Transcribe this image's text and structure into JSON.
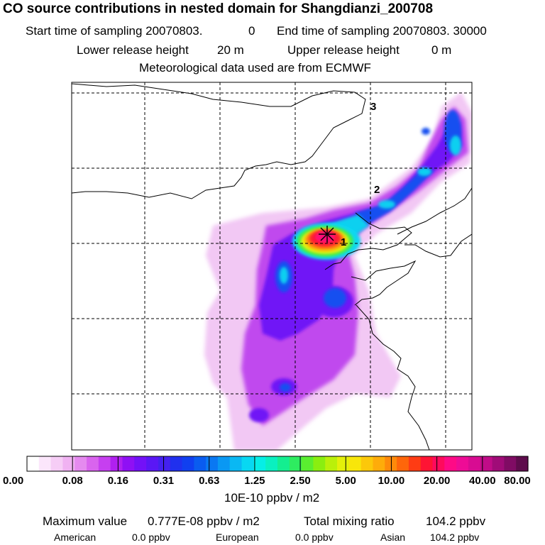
{
  "header": {
    "title": "CO  source contributions in nested domain for Shangdianzi_200708",
    "start_label": "Start time of sampling 20070803.",
    "start_value": "0",
    "end_label": "End time of sampling 20070803. 30000",
    "lower_label": "Lower release height",
    "lower_value": "20 m",
    "upper_label": "Upper release height",
    "upper_value": "0 m",
    "met_line": "Meteorological data used are from ECMWF"
  },
  "map": {
    "trajectory_labels": [
      "1",
      "2",
      "3"
    ],
    "receptor_marker": "star-marker"
  },
  "colorbar": {
    "ticks": [
      "0.00",
      "0.08",
      "0.16",
      "0.31",
      "0.63",
      "1.25",
      "2.50",
      "5.00",
      "10.00",
      "20.00",
      "40.00",
      "80.00"
    ],
    "units": "10E-10 ppbv / m2",
    "colors": [
      "#ffffff",
      "#fbe6fb",
      "#f6cdf6",
      "#f0b2f2",
      "#e58aef",
      "#d964ee",
      "#c63ff0",
      "#b020f0",
      "#8f10f4",
      "#7311f7",
      "#5a17f5",
      "#4421ef",
      "#2030ee",
      "#1040f0",
      "#0a5cf0",
      "#0a78f2",
      "#0a98f3",
      "#0ab8f3",
      "#08d8f2",
      "#06eee6",
      "#0af0c0",
      "#14ee90",
      "#2eec60",
      "#5aee30",
      "#8aee10",
      "#baf00a",
      "#e4f00a",
      "#f8e60a",
      "#fcc80a",
      "#feac0a",
      "#fe8a0a",
      "#fe660a",
      "#fe3c14",
      "#fe1434",
      "#fe0a5c",
      "#fe0a86",
      "#ee0c96",
      "#d80c92",
      "#c00c88",
      "#a00c78",
      "#800c64",
      "#5e0c4c"
    ]
  },
  "stats": {
    "max_label": "Maximum value",
    "max_value": "0.777E-08 ppbv / m2",
    "total_label": "Total mixing ratio",
    "total_value": "104.2 ppbv",
    "regions": [
      {
        "name": "American",
        "value": "0.0 ppbv"
      },
      {
        "name": "European",
        "value": "0.0 ppbv"
      },
      {
        "name": "Asian",
        "value": "104.2 ppbv"
      }
    ]
  }
}
